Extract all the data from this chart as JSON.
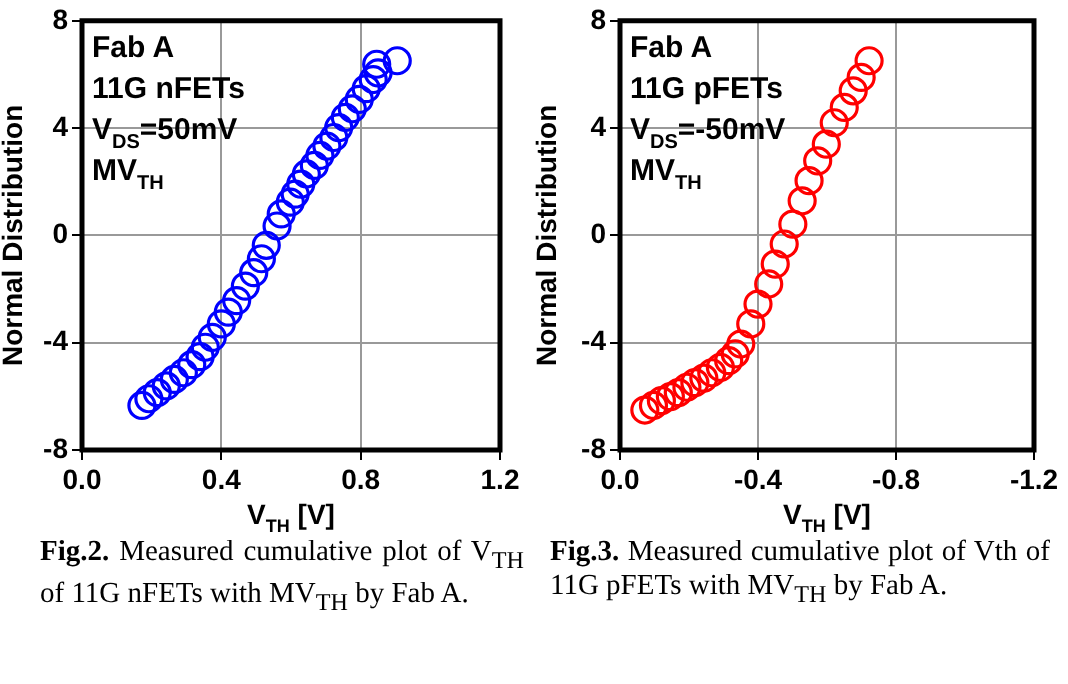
{
  "chart_data": [
    {
      "type": "scatter",
      "xlabel": "V$_{TH}$ [V]",
      "ylabel": "Normal Distribution",
      "annotations": [
        "Fab A",
        "11G nFETs",
        "V$_{DS}$=50mV",
        "MV$_{TH}$",
        "Fig.2. Measured cumulative plot of V$_{TH}$ of 11G nFETs with MV$_{TH}$ by Fab A."
      ],
      "xlim": [
        0,
        1.2
      ],
      "xticks": [
        {
          "value": 0,
          "label": "0.0"
        },
        0.4,
        0.8,
        1.2
      ],
      "ylim": [
        -8,
        8
      ],
      "yticks": [
        -8,
        -4,
        0,
        4,
        8
      ],
      "grid": true,
      "legend": false,
      "marker": "circle",
      "series": [
        {
          "color": "#0000ff",
          "x": [
            0.172,
            0.192,
            0.216,
            0.242,
            0.265,
            0.291,
            0.315,
            0.339,
            0.354,
            0.374,
            0.4,
            0.42,
            0.444,
            0.469,
            0.493,
            0.515,
            0.529,
            0.56,
            0.572,
            0.598,
            0.612,
            0.628,
            0.644,
            0.667,
            0.683,
            0.703,
            0.723,
            0.737,
            0.756,
            0.776,
            0.796,
            0.816,
            0.836,
            0.85,
            0.846,
            0.905
          ],
          "values": [
            -6.34,
            -6.09,
            -5.86,
            -5.61,
            -5.37,
            -5.12,
            -4.82,
            -4.52,
            -4.17,
            -3.8,
            -3.3,
            -2.86,
            -2.43,
            -1.89,
            -1.39,
            -0.87,
            -0.37,
            0.35,
            0.8,
            1.24,
            1.54,
            1.91,
            2.29,
            2.61,
            2.98,
            3.33,
            3.65,
            4.02,
            4.4,
            4.72,
            5.07,
            5.47,
            5.81,
            6.06,
            6.38,
            6.51
          ]
        }
      ]
    },
    {
      "type": "scatter",
      "xlabel": "V$_{TH}$ [V]",
      "ylabel": "Normal Distribution",
      "annotations": [
        "Fab A",
        "11G pFETs",
        "V$_{DS}$=-50mV",
        "MV$_{TH}$",
        "Fig.3. Measured cumulative plot of Vth of 11G pFETs with MV$_{TH}$ by Fab A."
      ],
      "xlim": [
        0,
        -1.2
      ],
      "xticks": [
        {
          "value": 0,
          "label": "0.0"
        },
        -0.4,
        -0.8,
        -1.2
      ],
      "ylim": [
        -8,
        8
      ],
      "yticks": [
        -8,
        -4,
        0,
        4,
        8
      ],
      "grid": true,
      "legend": false,
      "marker": "circle",
      "series": [
        {
          "color": "#ff0000",
          "x": [
            -0.072,
            -0.097,
            -0.12,
            -0.146,
            -0.169,
            -0.194,
            -0.217,
            -0.243,
            -0.266,
            -0.291,
            -0.315,
            -0.334,
            -0.35,
            -0.379,
            -0.4,
            -0.431,
            -0.45,
            -0.476,
            -0.501,
            -0.528,
            -0.548,
            -0.573,
            -0.598,
            -0.621,
            -0.65,
            -0.676,
            -0.699,
            -0.722
          ],
          "values": [
            -6.51,
            -6.34,
            -6.16,
            -6.01,
            -5.86,
            -5.66,
            -5.49,
            -5.32,
            -5.12,
            -4.92,
            -4.67,
            -4.42,
            -4.05,
            -3.3,
            -2.56,
            -1.81,
            -1.07,
            -0.32,
            0.42,
            1.29,
            2.04,
            2.78,
            3.4,
            4.2,
            4.77,
            5.39,
            5.89,
            6.51
          ]
        }
      ]
    }
  ]
}
